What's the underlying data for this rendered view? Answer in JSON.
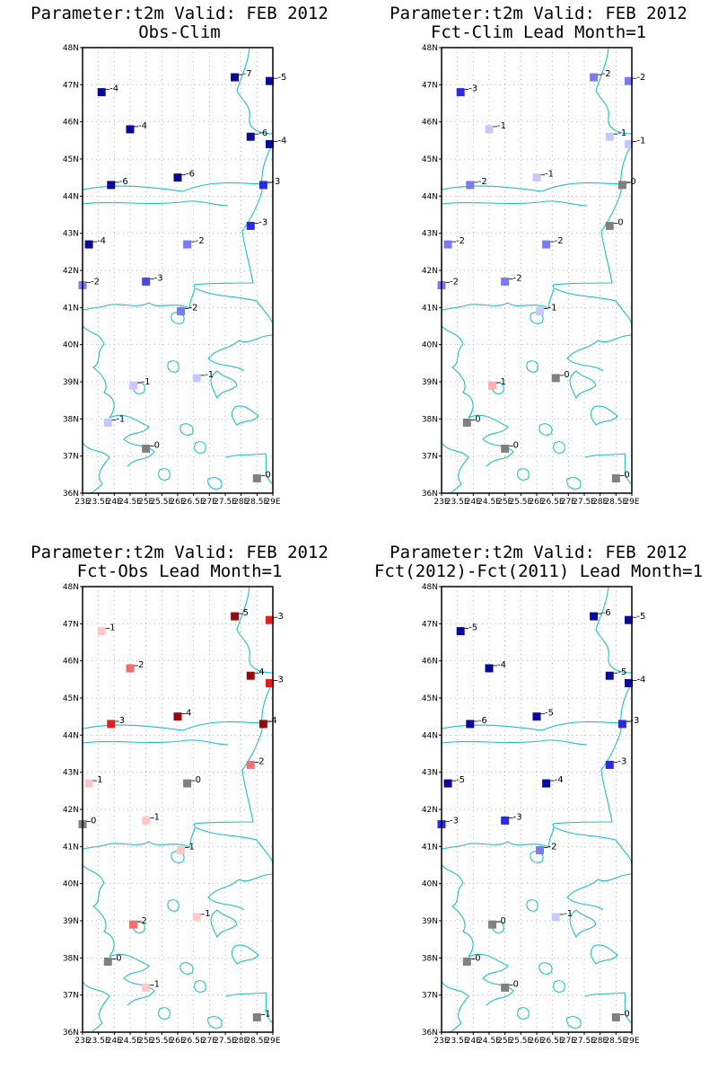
{
  "xlabels": [
    "23E",
    "23.5E",
    "24E",
    "24.5E",
    "25E",
    "25.5E",
    "26E",
    "26.5E",
    "27E",
    "27.5E",
    "28E",
    "28.5E",
    "29E"
  ],
  "ylabels": [
    "36N",
    "37N",
    "38N",
    "39N",
    "40N",
    "41N",
    "42N",
    "43N",
    "44N",
    "45N",
    "46N",
    "47N",
    "48N"
  ],
  "extent": {
    "lon": [
      23,
      29
    ],
    "lat": [
      36,
      48
    ]
  },
  "stations": [
    {
      "lon": 23.6,
      "lat": 46.8
    },
    {
      "lon": 24.5,
      "lat": 45.8
    },
    {
      "lon": 23.9,
      "lat": 44.3
    },
    {
      "lon": 23.2,
      "lat": 42.7
    },
    {
      "lon": 23.0,
      "lat": 41.6
    },
    {
      "lon": 25.0,
      "lat": 41.7
    },
    {
      "lon": 26.1,
      "lat": 40.9
    },
    {
      "lon": 26.3,
      "lat": 42.7
    },
    {
      "lon": 26.0,
      "lat": 44.5
    },
    {
      "lon": 27.8,
      "lat": 47.2
    },
    {
      "lon": 28.3,
      "lat": 45.6
    },
    {
      "lon": 28.9,
      "lat": 47.1
    },
    {
      "lon": 28.9,
      "lat": 45.4
    },
    {
      "lon": 28.7,
      "lat": 44.3
    },
    {
      "lon": 28.3,
      "lat": 43.2
    },
    {
      "lon": 24.6,
      "lat": 38.9
    },
    {
      "lon": 23.8,
      "lat": 37.9
    },
    {
      "lon": 25.0,
      "lat": 37.2
    },
    {
      "lon": 26.6,
      "lat": 39.1
    },
    {
      "lon": 28.5,
      "lat": 36.4
    }
  ],
  "panels": [
    {
      "title1": "Parameter:t2m Valid: FEB 2012",
      "title2": "Obs-Clim",
      "values": [
        "-4",
        "-4",
        "-6",
        "-4",
        "-2",
        "-3",
        "-2",
        "-2",
        "-6",
        "-7",
        "-6",
        "-5",
        "-4",
        "-3",
        "-3",
        "-1",
        "-1",
        "0",
        "-1",
        "0"
      ],
      "colors": [
        "#0a0a96",
        "#0a0a96",
        "#0a0a96",
        "#0a0a96",
        "#7a7af0",
        "#4b4bdc",
        "#7a7af0",
        "#7a7af0",
        "#0a0a96",
        "#0a0a96",
        "#0a0a96",
        "#0a0a96",
        "#0a0a96",
        "#2a2ae6",
        "#2a2ae6",
        "#c8c8ff",
        "#c8c8ff",
        "#808080",
        "#c8c8ff",
        "#808080"
      ]
    },
    {
      "title1": "Parameter:t2m Valid: FEB 2012",
      "title2": "Fct-Clim Lead Month=1",
      "values": [
        "-3",
        "-1",
        "-2",
        "-2",
        "-2",
        "-2",
        "-1",
        "-2",
        "-1",
        "-2",
        "-1",
        "-2",
        "-1",
        "0",
        "0",
        "1",
        "0",
        "0",
        "0",
        "0"
      ],
      "colors": [
        "#2a2ae6",
        "#c8c8ff",
        "#7a7af0",
        "#7a7af0",
        "#7a7af0",
        "#7a7af0",
        "#c8c8ff",
        "#7a7af0",
        "#c8c8ff",
        "#7a7af0",
        "#c8c8ff",
        "#7a7af0",
        "#c8c8ff",
        "#808080",
        "#808080",
        "#ffb0b0",
        "#808080",
        "#808080",
        "#808080",
        "#808080"
      ]
    },
    {
      "title1": "Parameter:t2m Valid: FEB 2012",
      "title2": "Fct-Obs Lead Month=1",
      "values": [
        "1",
        "2",
        "3",
        "1",
        "0",
        "1",
        "1",
        "0",
        "4",
        "5",
        "4",
        "3",
        "3",
        "4",
        "2",
        "2",
        "0",
        "1",
        "1",
        "1"
      ],
      "colors": [
        "#ffc8c8",
        "#f07070",
        "#e02020",
        "#ffc8c8",
        "#808080",
        "#ffc8c8",
        "#ffc8c8",
        "#808080",
        "#960a0a",
        "#960a0a",
        "#960a0a",
        "#e02020",
        "#e02020",
        "#960a0a",
        "#f07070",
        "#f07070",
        "#808080",
        "#ffc8c8",
        "#ffc8c8",
        "#808080"
      ]
    },
    {
      "title1": "Parameter:t2m Valid: FEB 2012",
      "title2": "Fct(2012)-Fct(2011) Lead Month=1",
      "values": [
        "-5",
        "-4",
        "-6",
        "-5",
        "-3",
        "-3",
        "-2",
        "-4",
        "-5",
        "-6",
        "-5",
        "-5",
        "-4",
        "-3",
        "-3",
        "0",
        "0",
        "0",
        "-1",
        "0"
      ],
      "colors": [
        "#0a0a96",
        "#0a0a96",
        "#0a0a96",
        "#0a0a96",
        "#2a2ae6",
        "#2a2ae6",
        "#7a7af0",
        "#0a0a96",
        "#0a0a96",
        "#0a0a96",
        "#0a0a96",
        "#0a0a96",
        "#0a0a96",
        "#2a2ae6",
        "#2a2ae6",
        "#808080",
        "#808080",
        "#808080",
        "#c8c8ff",
        "#808080"
      ]
    }
  ]
}
